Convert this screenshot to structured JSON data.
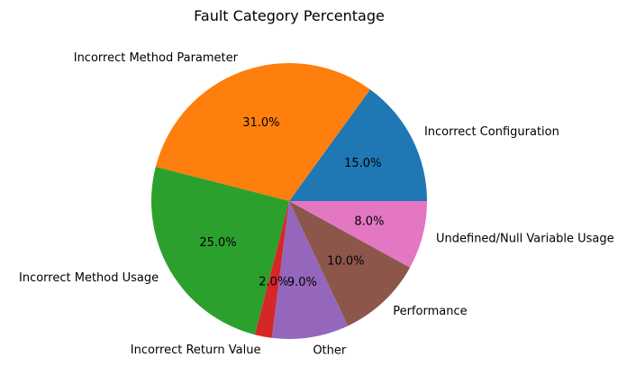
{
  "chart_data": {
    "type": "pie",
    "title": "Fault Category Percentage",
    "start_angle_deg": 0,
    "direction": "counterclockwise",
    "slices": [
      {
        "label": "Incorrect Configuration",
        "value": 15.0,
        "pct_label": "15.0%",
        "color": "#1f77b4"
      },
      {
        "label": "Incorrect Method Parameter",
        "value": 31.0,
        "pct_label": "31.0%",
        "color": "#ff7f0e"
      },
      {
        "label": "Incorrect Method Usage",
        "value": 25.0,
        "pct_label": "25.0%",
        "color": "#2ca02c"
      },
      {
        "label": "Incorrect Return Value",
        "value": 2.0,
        "pct_label": "2.0%",
        "color": "#d62728"
      },
      {
        "label": "Other",
        "value": 9.0,
        "pct_label": "9.0%",
        "color": "#9467bd"
      },
      {
        "label": "Performance",
        "value": 10.0,
        "pct_label": "10.0%",
        "color": "#8c564b"
      },
      {
        "label": "Undefined/Null Variable Usage",
        "value": 8.0,
        "pct_label": "8.0%",
        "color": "#e377c2"
      }
    ]
  }
}
